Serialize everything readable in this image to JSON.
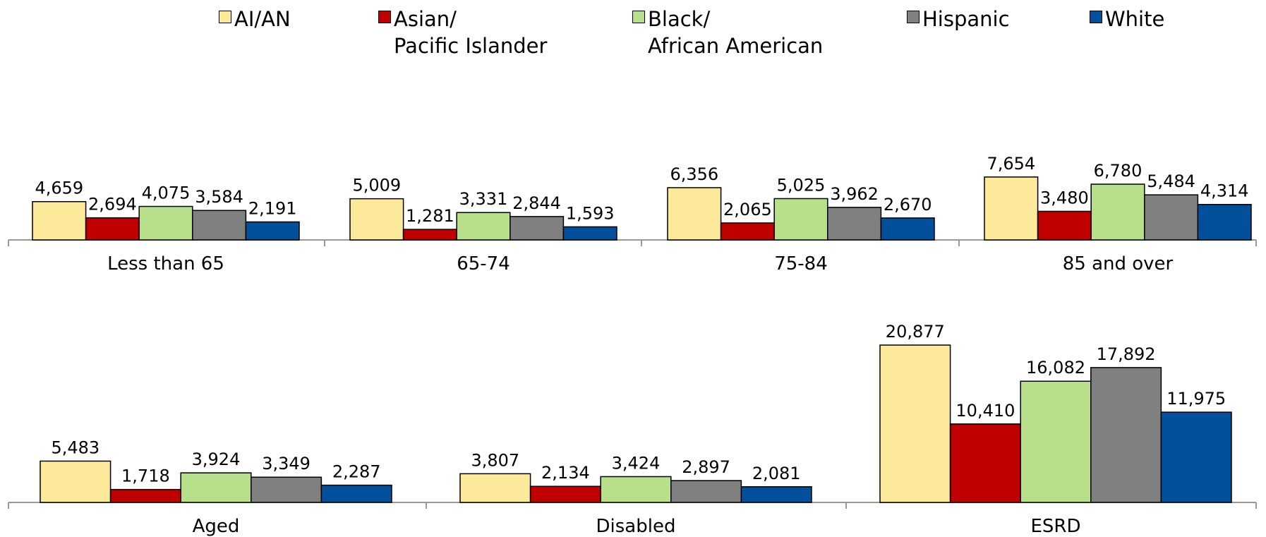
{
  "colors": {
    "AI/AN": "#fce99a",
    "Asian/Pacific Islander": "#c00000",
    "Black/African American": "#b8e08a",
    "Hispanic": "#808080",
    "White": "#024f9b"
  },
  "legend": [
    {
      "label": "AI/AN",
      "color": "#fce99a"
    },
    {
      "label": "Asian/\nPacific Islander",
      "color": "#c00000"
    },
    {
      "label": "Black/\nAfrican American",
      "color": "#b8e08a"
    },
    {
      "label": "Hispanic",
      "color": "#808080"
    },
    {
      "label": "White",
      "color": "#024f9b"
    }
  ],
  "chart_data": [
    {
      "type": "bar",
      "categories": [
        "Less than 65",
        "65-74",
        "75-84",
        "85 and over"
      ],
      "series": [
        {
          "name": "AI/AN",
          "values": [
            4659,
            5009,
            6356,
            7654
          ]
        },
        {
          "name": "Asian/Pacific Islander",
          "values": [
            2694,
            1281,
            2065,
            3480
          ]
        },
        {
          "name": "Black/African American",
          "values": [
            4075,
            3331,
            5025,
            6780
          ]
        },
        {
          "name": "Hispanic",
          "values": [
            3584,
            2844,
            3962,
            5484
          ]
        },
        {
          "name": "White",
          "values": [
            2191,
            1593,
            2670,
            4314
          ]
        }
      ],
      "value_labels": [
        [
          "4,659",
          "5,009",
          "6,356",
          "7,654"
        ],
        [
          "2,694",
          "1,281",
          "2,065",
          "3,480"
        ],
        [
          "4,075",
          "3,331",
          "5,025",
          "6,780"
        ],
        [
          "3,584",
          "2,844",
          "3,962",
          "5,484"
        ],
        [
          "2,191",
          "1,593",
          "2,670",
          "4,314"
        ]
      ],
      "title": "",
      "xlabel": "",
      "ylabel": "",
      "ylim": [
        0,
        25000
      ],
      "grid": false,
      "legend": "top"
    },
    {
      "type": "bar",
      "categories": [
        "Aged",
        "Disabled",
        "ESRD"
      ],
      "series": [
        {
          "name": "AI/AN",
          "values": [
            5483,
            3807,
            20877
          ]
        },
        {
          "name": "Asian/Pacific Islander",
          "values": [
            1718,
            2134,
            10410
          ]
        },
        {
          "name": "Black/African American",
          "values": [
            3924,
            3424,
            16082
          ]
        },
        {
          "name": "Hispanic",
          "values": [
            3349,
            2897,
            17892
          ]
        },
        {
          "name": "White",
          "values": [
            2287,
            2081,
            11975
          ]
        }
      ],
      "value_labels": [
        [
          "5,483",
          "3,807",
          "20,877"
        ],
        [
          "1,718",
          "2,134",
          "10,410"
        ],
        [
          "3,924",
          "3,424",
          "16,082"
        ],
        [
          "3,349",
          "2,897",
          "17,892"
        ],
        [
          "2,287",
          "2,081",
          "11,975"
        ]
      ],
      "title": "",
      "xlabel": "",
      "ylabel": "",
      "ylim": [
        0,
        25000
      ],
      "grid": false,
      "legend": "top"
    }
  ]
}
